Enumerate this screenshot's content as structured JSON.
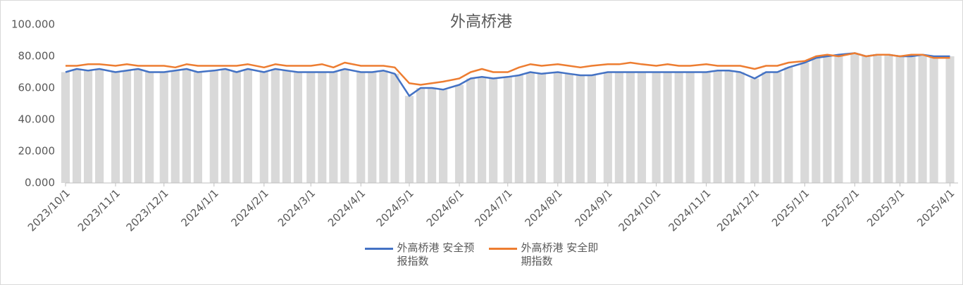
{
  "chart_data": {
    "type": "line",
    "title": "外高桥港",
    "x": [
      "2023/10/1",
      "2023/10/8",
      "2023/10/15",
      "2023/10/22",
      "2023/11/1",
      "2023/11/8",
      "2023/11/15",
      "2023/11/22",
      "2023/12/1",
      "2023/12/8",
      "2023/12/15",
      "2023/12/22",
      "2024/1/1",
      "2024/1/8",
      "2024/1/15",
      "2024/1/22",
      "2024/2/1",
      "2024/2/8",
      "2024/2/15",
      "2024/2/22",
      "2024/3/1",
      "2024/3/8",
      "2024/3/15",
      "2024/3/22",
      "2024/4/1",
      "2024/4/8",
      "2024/4/15",
      "2024/4/22",
      "2024/5/1",
      "2024/5/8",
      "2024/5/15",
      "2024/5/22",
      "2024/6/1",
      "2024/6/8",
      "2024/6/15",
      "2024/6/22",
      "2024/7/1",
      "2024/7/8",
      "2024/7/15",
      "2024/7/22",
      "2024/8/1",
      "2024/8/8",
      "2024/8/15",
      "2024/8/22",
      "2024/9/1",
      "2024/9/8",
      "2024/9/15",
      "2024/9/22",
      "2024/10/1",
      "2024/10/8",
      "2024/10/15",
      "2024/10/22",
      "2024/11/1",
      "2024/11/8",
      "2024/11/15",
      "2024/11/22",
      "2024/12/1",
      "2024/12/8",
      "2024/12/15",
      "2024/12/22",
      "2025/1/1",
      "2025/1/8",
      "2025/1/15",
      "2025/1/22",
      "2025/2/1",
      "2025/2/8",
      "2025/2/15",
      "2025/2/22",
      "2025/3/1",
      "2025/3/8",
      "2025/3/15",
      "2025/3/22",
      "2025/4/1"
    ],
    "series": [
      {
        "name": "外高桥港 安全预报指数",
        "color": "#4472c4",
        "values": [
          70,
          72,
          71,
          72,
          70,
          71,
          72,
          70,
          70,
          71,
          72,
          70,
          71,
          72,
          70,
          72,
          70,
          72,
          71,
          70,
          70,
          70,
          70,
          72,
          70,
          70,
          71,
          69,
          55,
          60,
          60,
          59,
          62,
          66,
          67,
          66,
          67,
          68,
          70,
          69,
          70,
          69,
          68,
          68,
          70,
          70,
          70,
          70,
          70,
          70,
          70,
          70,
          70,
          71,
          71,
          70,
          66,
          70,
          70,
          73,
          76,
          79,
          80,
          81,
          82,
          80,
          81,
          81,
          80,
          80,
          81,
          80,
          80
        ]
      },
      {
        "name": "外高桥港 安全即期指数",
        "color": "#ed7d31",
        "values": [
          74,
          74,
          75,
          75,
          74,
          75,
          74,
          74,
          74,
          73,
          75,
          74,
          74,
          74,
          74,
          75,
          73,
          75,
          74,
          74,
          74,
          75,
          73,
          76,
          74,
          74,
          74,
          73,
          63,
          62,
          63,
          64,
          66,
          70,
          72,
          70,
          70,
          73,
          75,
          74,
          75,
          74,
          73,
          74,
          75,
          75,
          76,
          75,
          74,
          75,
          74,
          74,
          75,
          74,
          74,
          74,
          72,
          74,
          74,
          76,
          77,
          80,
          81,
          80,
          82,
          80,
          81,
          81,
          80,
          81,
          81,
          79,
          79
        ]
      }
    ],
    "xlim": [
      "2023/10/1",
      "2025/4/6"
    ],
    "xticks": [
      "2023/10/1",
      "2023/11/1",
      "2023/12/1",
      "2024/1/1",
      "2024/2/1",
      "2024/3/1",
      "2024/4/1",
      "2024/5/1",
      "2024/6/1",
      "2024/7/1",
      "2024/8/1",
      "2024/9/1",
      "2024/10/1",
      "2024/11/1",
      "2024/12/1",
      "2025/1/1",
      "2025/2/1",
      "2025/3/1",
      "2025/4/1"
    ],
    "ylim": [
      0,
      100
    ],
    "yticks": [
      {
        "value": 0,
        "label": "0.000"
      },
      {
        "value": 20,
        "label": "20.000"
      },
      {
        "value": 40,
        "label": "40.000"
      },
      {
        "value": 60,
        "label": "60.000"
      },
      {
        "value": 80,
        "label": "80.000"
      },
      {
        "value": 100,
        "label": "100.000"
      }
    ],
    "bar_color": "#d9d9d9",
    "legend": "bottom"
  }
}
